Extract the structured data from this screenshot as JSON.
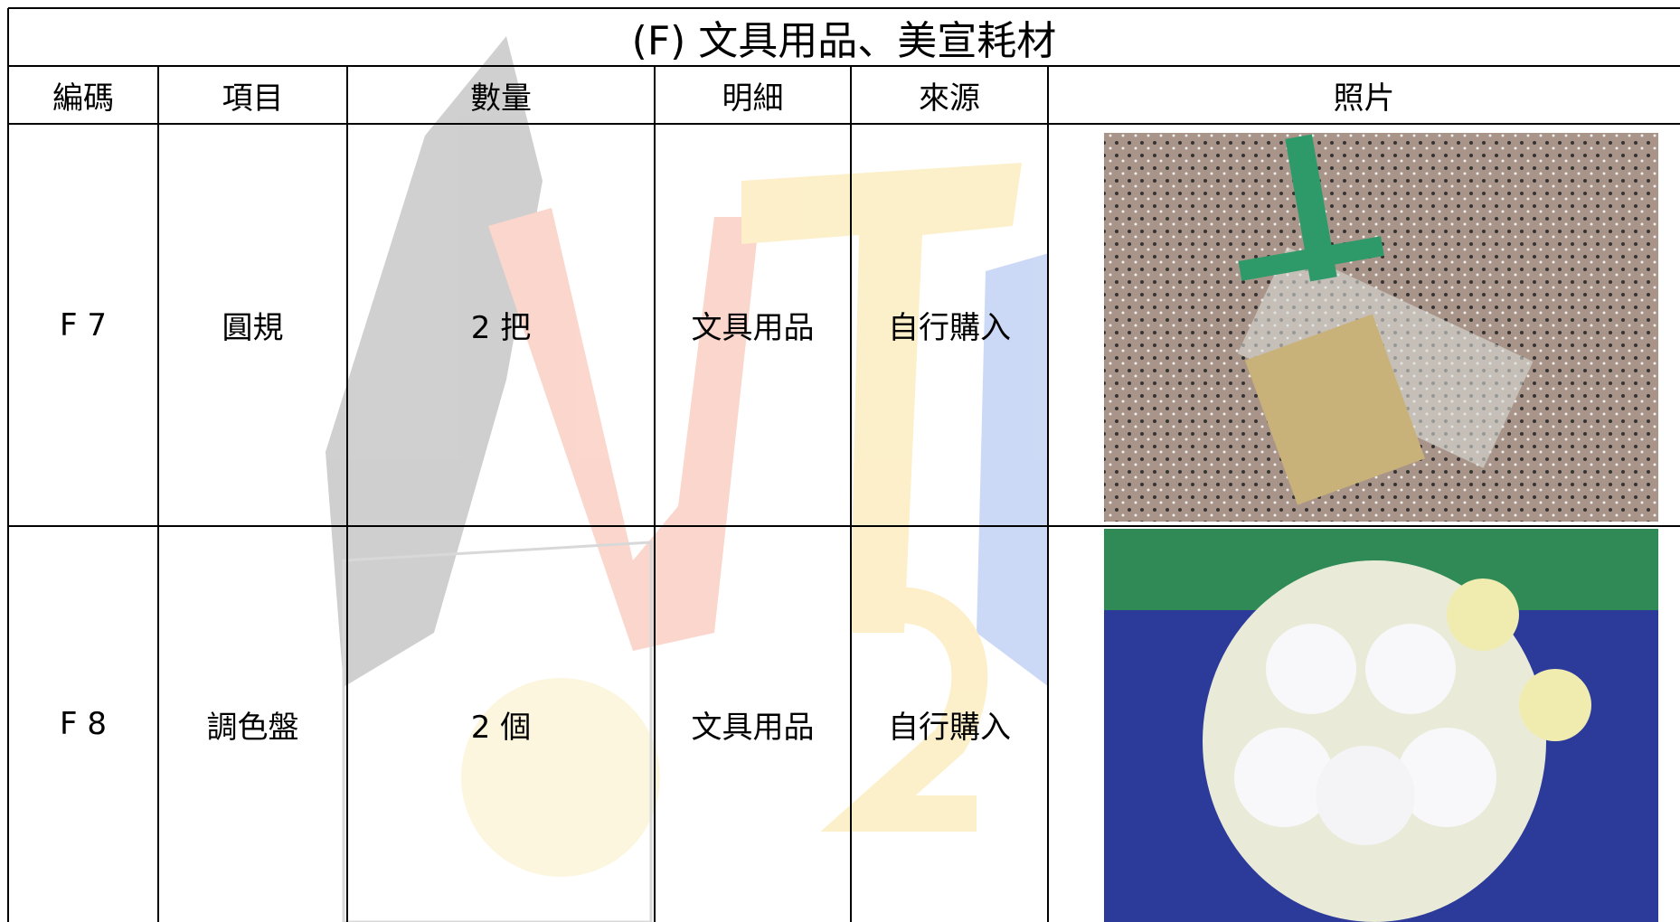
{
  "header": {
    "title": "(F) 文具用品、美宣耗材"
  },
  "table": {
    "columns": [
      "編碼",
      "項目",
      "數量",
      "明細",
      "來源",
      "照片"
    ],
    "rows": [
      [
        "F 7",
        "圓規",
        "2 把",
        "文具用品",
        "自行購入"
      ],
      [
        "F 8",
        "調色盤",
        "2 個",
        "文具用品",
        "自行購入"
      ]
    ]
  }
}
